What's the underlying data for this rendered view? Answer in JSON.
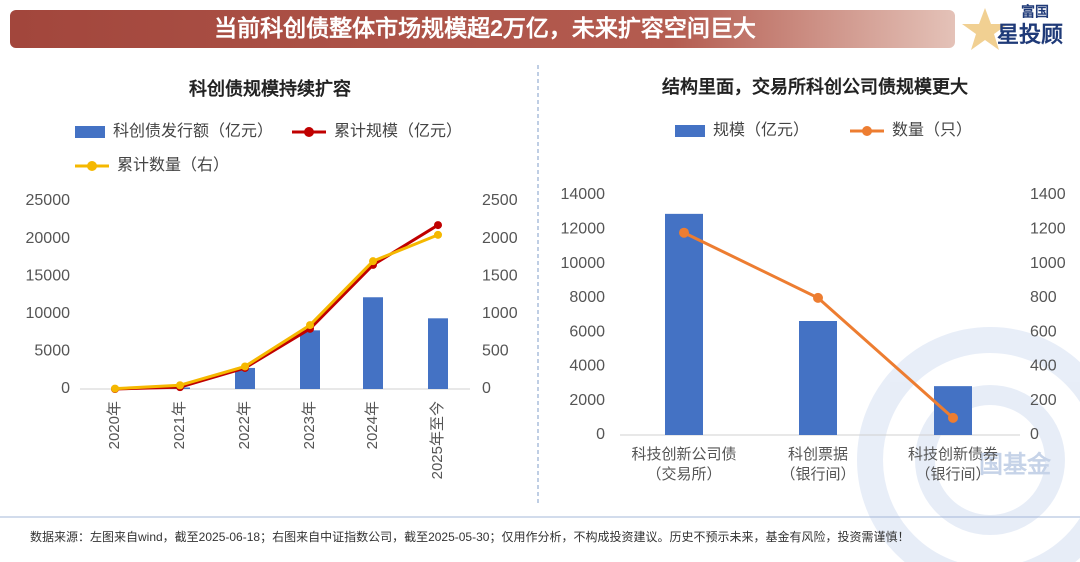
{
  "header": {
    "title": "当前科创债整体市场规模超2万亿，未来扩容空间巨大"
  },
  "logo": {
    "line1": "富国",
    "line2": "星投顾"
  },
  "watermark": "国基金",
  "chart_data": [
    {
      "type": "combo",
      "title": "科创债规模持续扩容",
      "categories": [
        "2020年",
        "2021年",
        "2022年",
        "2023年",
        "2024年",
        "2025年至今"
      ],
      "series": [
        {
          "name": "科创债发行额（亿元）",
          "type": "bar",
          "color": "#4472c4",
          "values": [
            0,
            200,
            2800,
            7800,
            12200,
            9400
          ]
        },
        {
          "name": "累计规模（亿元）",
          "type": "line",
          "color": "#c00000",
          "values": [
            0,
            250,
            2800,
            8000,
            16500,
            21800
          ]
        },
        {
          "name": "累计数量（右）",
          "type": "line",
          "axis": "y2",
          "color": "#f5b800",
          "values": [
            5,
            50,
            300,
            850,
            1700,
            2050
          ]
        }
      ],
      "ylim": [
        0,
        25000
      ],
      "yticks": [
        0,
        5000,
        10000,
        15000,
        20000,
        25000
      ],
      "y2lim": [
        0,
        2500
      ],
      "y2ticks": [
        0,
        500,
        1000,
        1500,
        2000,
        2500
      ]
    },
    {
      "type": "combo",
      "title": "结构里面，交易所科创公司债规模更大",
      "categories": [
        "科技创新公司债\n（交易所）",
        "科创票据\n（银行间）",
        "科技创新债券\n（银行间）"
      ],
      "series": [
        {
          "name": "规模（亿元）",
          "type": "bar",
          "color": "#4472c4",
          "values": [
            12900,
            6650,
            2850
          ]
        },
        {
          "name": "数量（只）",
          "type": "line",
          "axis": "y2",
          "color": "#ed7d31",
          "values": [
            1180,
            800,
            100
          ]
        }
      ],
      "ylim": [
        0,
        14000
      ],
      "yticks": [
        0,
        2000,
        4000,
        6000,
        8000,
        10000,
        12000,
        14000
      ],
      "y2lim": [
        0,
        1400
      ],
      "y2ticks": [
        0,
        200,
        400,
        600,
        800,
        1000,
        1200,
        1400
      ]
    }
  ],
  "footer": {
    "text": "数据来源：左图来自wind，截至2025-06-18；右图来自中证指数公司，截至2025-05-30；仅用作分析，不构成投资建议。历史不预示未来，基金有风险，投资需谨慎！"
  }
}
